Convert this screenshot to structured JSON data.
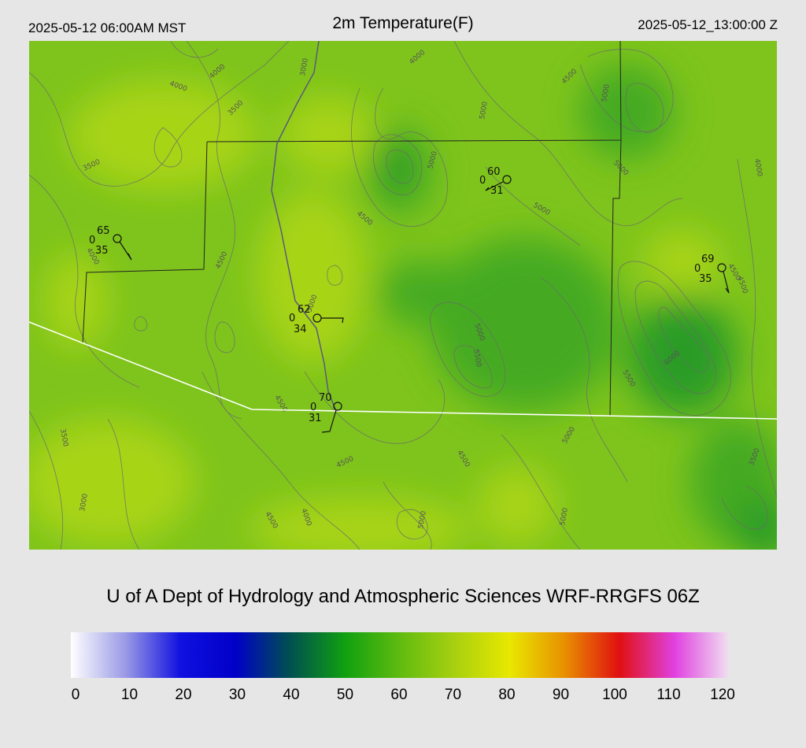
{
  "header": {
    "valid_local": "2025-05-12 06:00AM MST",
    "title": "2m Temperature(F)",
    "valid_utc": "2025-05-12_13:00:00 Z"
  },
  "credit": "U of A Dept of Hydrology and Atmospheric Sciences WRF-RRGFS 06Z",
  "colorbar": {
    "ticks": [
      "0",
      "10",
      "20",
      "30",
      "40",
      "50",
      "60",
      "70",
      "80",
      "90",
      "100",
      "110",
      "120"
    ],
    "colors": [
      "#ffffff",
      "#9a9ae6",
      "#1010e0",
      "#0000c8",
      "#005050",
      "#10a010",
      "#60bb10",
      "#a8d010",
      "#e8e800",
      "#e89000",
      "#e01010",
      "#e040e0",
      "#f0e0f0"
    ]
  },
  "map": {
    "fill_colors": {
      "base": "#7ec41c",
      "warm": "#a8d414",
      "cool": "#44aa22",
      "cooler": "#2c9c28"
    },
    "contour_labels": [
      "4000",
      "4000",
      "3000",
      "3500",
      "3500",
      "4000",
      "4500",
      "5000",
      "5000",
      "5000",
      "5000",
      "4000",
      "4500",
      "4500",
      "5000",
      "5500",
      "5000",
      "4500",
      "5500",
      "6000",
      "3500",
      "4500",
      "4500",
      "4000",
      "4500",
      "5000",
      "5000",
      "5000",
      "3000",
      "4500",
      "5000",
      "4500",
      "4000",
      "3500"
    ],
    "stations": [
      {
        "temp": "65",
        "cloud": "0",
        "dew": "35"
      },
      {
        "temp": "60",
        "cloud": "0",
        "dew": "31"
      },
      {
        "temp": "69",
        "cloud": "0",
        "dew": "35"
      },
      {
        "temp": "62",
        "cloud": "0",
        "dew": "34"
      },
      {
        "temp": "70",
        "cloud": "0",
        "dew": "31"
      }
    ]
  }
}
